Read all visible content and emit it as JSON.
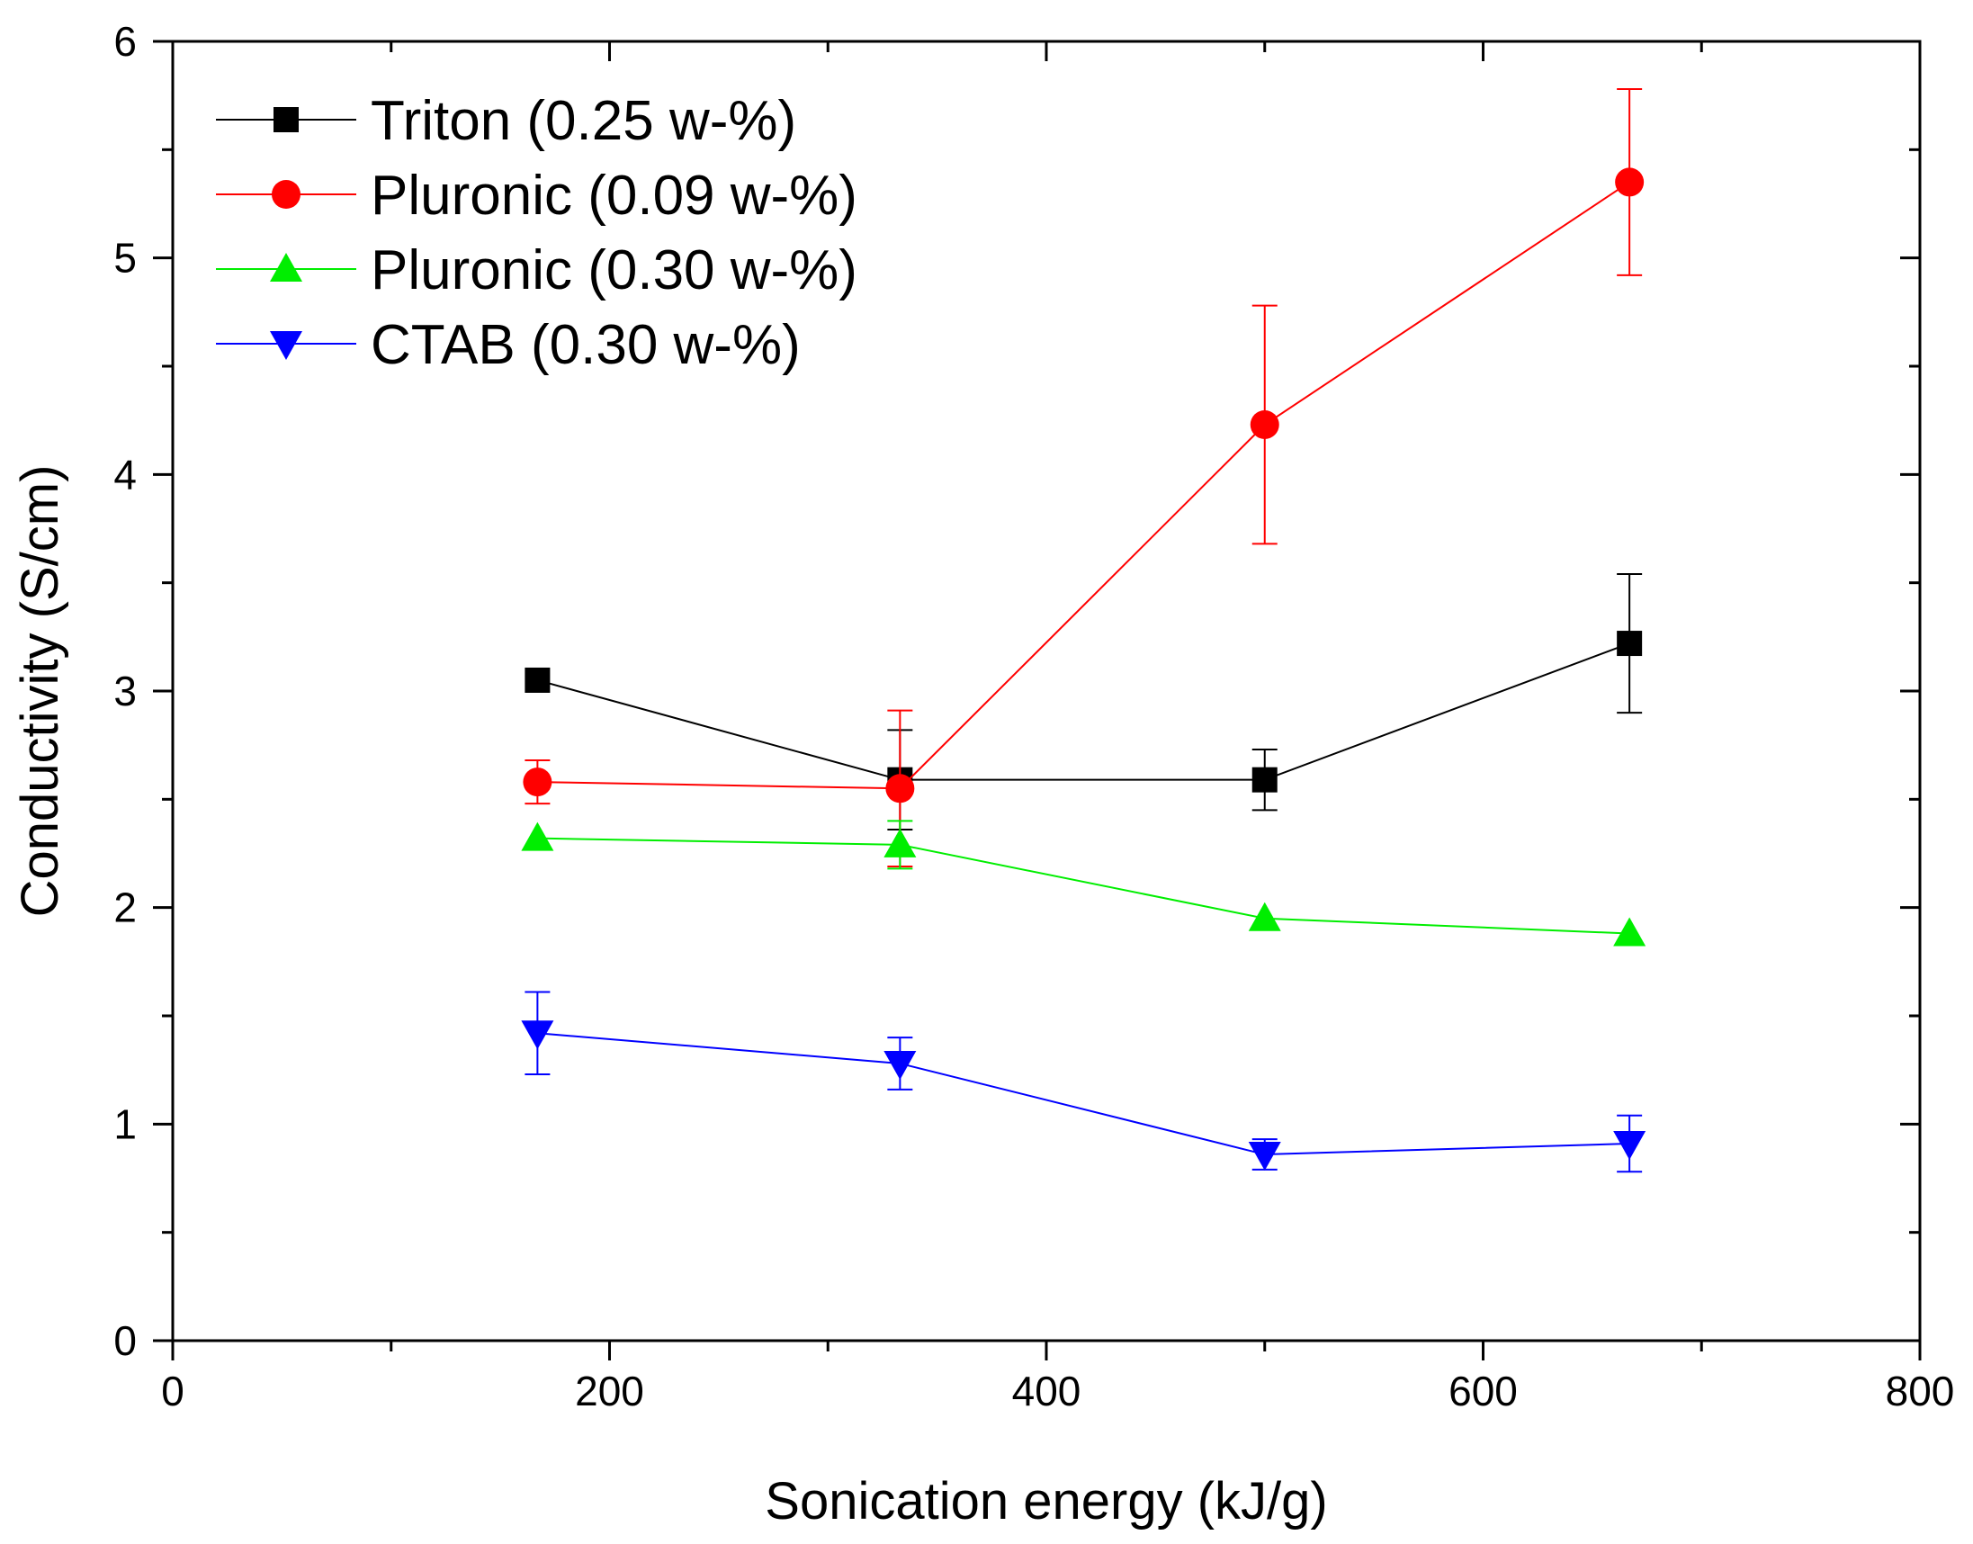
{
  "chart_data": {
    "type": "line",
    "title": "",
    "xlabel": "Sonication energy (kJ/g)",
    "ylabel": "Conductivity (S/cm)",
    "xlim": [
      0,
      800
    ],
    "ylim": [
      0,
      6
    ],
    "x_ticks": [
      0,
      200,
      400,
      600,
      800
    ],
    "y_ticks": [
      0,
      1,
      2,
      3,
      4,
      5,
      6
    ],
    "grid": false,
    "legend_position": "top-left",
    "x": [
      167,
      333,
      500,
      667
    ],
    "series": [
      {
        "name": "Triton (0.25 w-%)",
        "color": "#000000",
        "marker": "square",
        "values": [
          3.05,
          2.59,
          2.59,
          3.22
        ],
        "errors": [
          0.0,
          0.23,
          0.14,
          0.32
        ]
      },
      {
        "name": "Pluronic (0.09 w-%)",
        "color": "#ff0000",
        "marker": "circle",
        "values": [
          2.58,
          2.55,
          4.23,
          5.35
        ],
        "errors": [
          0.1,
          0.36,
          0.55,
          0.43
        ]
      },
      {
        "name": "Pluronic (0.30 w-%)",
        "color": "#00ee00",
        "marker": "triangle-up",
        "values": [
          2.32,
          2.29,
          1.95,
          1.88
        ],
        "errors": [
          0.0,
          0.11,
          0.0,
          0.0
        ]
      },
      {
        "name": "CTAB (0.30 w-%)",
        "color": "#0000ff",
        "marker": "triangle-down",
        "values": [
          1.42,
          1.28,
          0.86,
          0.91
        ],
        "errors": [
          0.19,
          0.12,
          0.07,
          0.13
        ]
      }
    ]
  }
}
